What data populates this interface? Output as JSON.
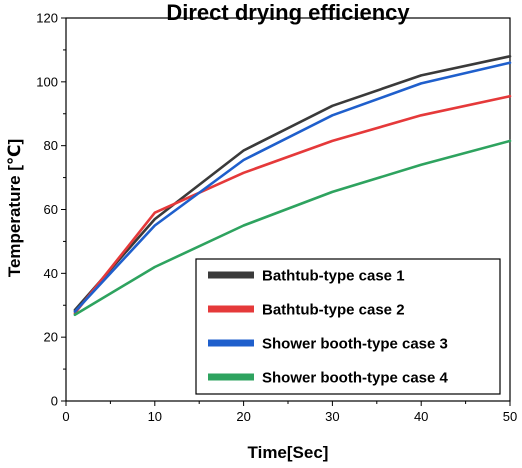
{
  "chart_data": {
    "type": "line",
    "title": "Direct drying efficiency",
    "xlabel": "Time[Sec]",
    "ylabel": "Temperature [℃]",
    "xlim": [
      0,
      50
    ],
    "ylim": [
      0,
      120
    ],
    "xticks": [
      0,
      10,
      20,
      30,
      40,
      50
    ],
    "yticks": [
      0,
      20,
      40,
      60,
      80,
      100,
      120
    ],
    "grid": false,
    "legend_position": "bottom-right",
    "x": [
      1,
      10,
      20,
      30,
      40,
      50
    ],
    "series": [
      {
        "name": "Bathtub-type case 1",
        "color": "#3a3a3a",
        "values": [
          28.5,
          57,
          78.5,
          92.5,
          102,
          108
        ]
      },
      {
        "name": "Bathtub-type case 2",
        "color": "#e5393a",
        "values": [
          27.5,
          59,
          71.5,
          81.5,
          89.5,
          95.5
        ]
      },
      {
        "name": "Shower booth-type case 3",
        "color": "#1f5fcc",
        "values": [
          28,
          55,
          75.5,
          89.5,
          99.5,
          106
        ]
      },
      {
        "name": "Shower booth-type case 4",
        "color": "#2ea35f",
        "values": [
          27,
          42,
          55,
          65.5,
          74,
          81.5
        ]
      }
    ]
  }
}
